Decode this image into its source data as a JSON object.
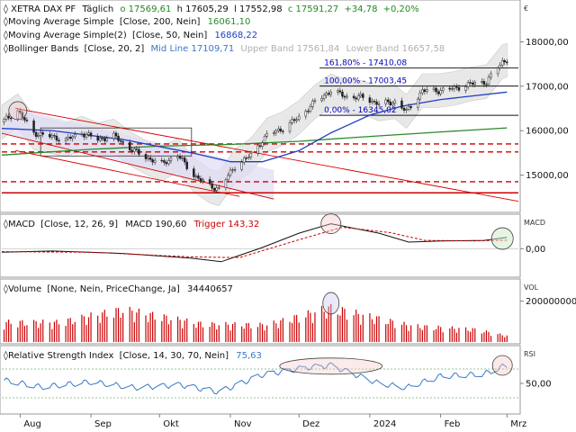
{
  "chart_data": {
    "type": "line",
    "headers": {
      "price": {
        "instrument": "XETRA DAX PF",
        "interval": "Täglich",
        "open": "o 17569,61",
        "high": "h 17605,29",
        "low": "l 17552,98",
        "close": "c 17591,27",
        "change": "+34,78",
        "change_pct": "+0,20%"
      },
      "sma200": {
        "label": "Moving Average Simple",
        "params": "[Close, 200, Nein]",
        "value": "16061,10"
      },
      "sma50": {
        "label": "Moving Average Simple(2)",
        "params": "[Close, 50, Nein]",
        "value": "16868,22"
      },
      "bb": {
        "label": "Bollinger Bands",
        "params": "[Close, 20, 2]",
        "mid": "Mid Line 17109,71",
        "upper": "Upper Band 17561,84",
        "lower": "Lower Band 16657,58"
      },
      "macd": {
        "label": "MACD",
        "params": "[Close, 12, 26, 9]",
        "value": "MACD 190,60",
        "trigger": "Trigger 143,32"
      },
      "volume": {
        "label": "Volume",
        "params": "[None, Nein, PriceChange, Ja]",
        "value": "34440657"
      },
      "rsi": {
        "label": "Relative Strength Index",
        "params": "[Close, 14, 30, 70, Nein]",
        "value": "75,63"
      }
    },
    "axis_titles": {
      "price": "€",
      "macd": "MACD",
      "volume": "VOL",
      "rsi": "RSI"
    },
    "price_axis": {
      "ylim": [
        14200,
        18900
      ],
      "ticks": [
        "18000,00",
        "17000,00",
        "16000,00",
        "15000,00"
      ],
      "tick_values": [
        18000,
        17000,
        16000,
        15000
      ]
    },
    "macd_axis": {
      "ylim": [
        -450,
        550
      ],
      "ticks": [
        "0,00"
      ],
      "tick_values": [
        0
      ]
    },
    "volume_axis": {
      "ylim": [
        0,
        300000000
      ],
      "ticks": [
        "200000000"
      ],
      "tick_values": [
        200000000
      ]
    },
    "rsi_axis": {
      "ylim": [
        10,
        100
      ],
      "ticks": [
        "50,00"
      ],
      "tick_values": [
        50
      ]
    },
    "x_axis": {
      "range": [
        "2023-07-24",
        "2024-03-06"
      ],
      "ticks": [
        {
          "date": "2023-08-01",
          "label": "Aug"
        },
        {
          "date": "2023-09-01",
          "label": "Sep"
        },
        {
          "date": "2023-10-01",
          "label": "Okt"
        },
        {
          "date": "2023-11-01",
          "label": "Nov"
        },
        {
          "date": "2023-12-01",
          "label": "Dez"
        },
        {
          "date": "2024-01-01",
          "label": "2024"
        },
        {
          "date": "2024-02-01",
          "label": "Feb"
        },
        {
          "date": "2024-03-01",
          "label": "Mrz"
        }
      ]
    },
    "price_series": [
      {
        "date": "2023-07-24",
        "value": 16190
      },
      {
        "date": "2023-07-31",
        "value": 16450
      },
      {
        "date": "2023-08-07",
        "value": 15950
      },
      {
        "date": "2023-08-14",
        "value": 15870
      },
      {
        "date": "2023-08-21",
        "value": 15790
      },
      {
        "date": "2023-08-28",
        "value": 15950
      },
      {
        "date": "2023-09-04",
        "value": 15800
      },
      {
        "date": "2023-09-11",
        "value": 15880
      },
      {
        "date": "2023-09-18",
        "value": 15600
      },
      {
        "date": "2023-09-25",
        "value": 15400
      },
      {
        "date": "2023-10-02",
        "value": 15250
      },
      {
        "date": "2023-10-09",
        "value": 15450
      },
      {
        "date": "2023-10-16",
        "value": 15000
      },
      {
        "date": "2023-10-23",
        "value": 14750
      },
      {
        "date": "2023-10-27",
        "value": 14690
      },
      {
        "date": "2023-11-03",
        "value": 15200
      },
      {
        "date": "2023-11-10",
        "value": 15450
      },
      {
        "date": "2023-11-17",
        "value": 15900
      },
      {
        "date": "2023-11-24",
        "value": 16050
      },
      {
        "date": "2023-12-01",
        "value": 16300
      },
      {
        "date": "2023-12-08",
        "value": 16650
      },
      {
        "date": "2023-12-15",
        "value": 16900
      },
      {
        "date": "2023-12-22",
        "value": 16760
      },
      {
        "date": "2023-12-29",
        "value": 16750
      },
      {
        "date": "2024-01-05",
        "value": 16600
      },
      {
        "date": "2024-01-12",
        "value": 16650
      },
      {
        "date": "2024-01-17",
        "value": 16430
      },
      {
        "date": "2024-01-24",
        "value": 16900
      },
      {
        "date": "2024-01-31",
        "value": 16900
      },
      {
        "date": "2024-02-07",
        "value": 16950
      },
      {
        "date": "2024-02-14",
        "value": 17050
      },
      {
        "date": "2024-02-21",
        "value": 17100
      },
      {
        "date": "2024-02-28",
        "value": 17550
      },
      {
        "date": "2024-03-01",
        "value": 17591
      }
    ],
    "sma200_series": [
      {
        "date": "2023-07-24",
        "value": 15450
      },
      {
        "date": "2023-09-01",
        "value": 15580
      },
      {
        "date": "2023-10-01",
        "value": 15650
      },
      {
        "date": "2023-11-01",
        "value": 15690
      },
      {
        "date": "2023-12-01",
        "value": 15760
      },
      {
        "date": "2024-01-01",
        "value": 15870
      },
      {
        "date": "2024-02-01",
        "value": 15970
      },
      {
        "date": "2024-03-01",
        "value": 16061
      }
    ],
    "sma50_series": [
      {
        "date": "2023-07-24",
        "value": 16050
      },
      {
        "date": "2023-08-15",
        "value": 16000
      },
      {
        "date": "2023-09-15",
        "value": 15800
      },
      {
        "date": "2023-10-15",
        "value": 15500
      },
      {
        "date": "2023-11-01",
        "value": 15300
      },
      {
        "date": "2023-11-15",
        "value": 15300
      },
      {
        "date": "2023-12-01",
        "value": 15550
      },
      {
        "date": "2023-12-15",
        "value": 15950
      },
      {
        "date": "2024-01-01",
        "value": 16350
      },
      {
        "date": "2024-01-15",
        "value": 16550
      },
      {
        "date": "2024-02-01",
        "value": 16700
      },
      {
        "date": "2024-03-01",
        "value": 16868
      }
    ],
    "fibonacci": [
      {
        "label": "161,80% - 17410,08",
        "value": 17410.08
      },
      {
        "label": "100,00% - 17003,45",
        "value": 17003.45
      },
      {
        "label": "0,00% - 16345,02",
        "value": 16345.02
      }
    ],
    "support_levels": [
      15700,
      15520,
      14850,
      14600
    ],
    "downtrend_channel": [
      {
        "from": {
          "date": "2023-07-30",
          "value": 16500
        },
        "to": {
          "date": "2024-03-06",
          "value": 14410
        }
      },
      {
        "from": {
          "date": "2023-07-24",
          "value": 15940
        },
        "to": {
          "date": "2023-11-20",
          "value": 14460
        }
      },
      {
        "from": {
          "date": "2023-07-30",
          "value": 15550
        },
        "to": {
          "date": "2023-11-05",
          "value": 14520
        }
      }
    ],
    "rectangle": {
      "from": {
        "date": "2023-08-10",
        "value": 16060
      },
      "to": {
        "date": "2023-10-15",
        "value": 15430
      }
    },
    "volume_bars": [
      {
        "date": "2023-08-18",
        "value": 110000000
      },
      {
        "date": "2023-09-15",
        "value": 180000000
      },
      {
        "date": "2023-10-20",
        "value": 100000000
      },
      {
        "date": "2023-11-17",
        "value": 95000000
      },
      {
        "date": "2023-12-15",
        "value": 190000000
      },
      {
        "date": "2024-01-19",
        "value": 90000000
      },
      {
        "date": "2024-02-16",
        "value": 70000000
      },
      {
        "date": "2024-03-01",
        "value": 34440657
      }
    ],
    "macd_series": [
      {
        "date": "2023-07-24",
        "value": -60
      },
      {
        "date": "2023-08-15",
        "value": -40
      },
      {
        "date": "2023-09-15",
        "value": -80
      },
      {
        "date": "2023-10-15",
        "value": -160
      },
      {
        "date": "2023-10-28",
        "value": -220
      },
      {
        "date": "2023-11-15",
        "value": 20
      },
      {
        "date": "2023-12-01",
        "value": 260
      },
      {
        "date": "2023-12-15",
        "value": 420
      },
      {
        "date": "2024-01-05",
        "value": 260
      },
      {
        "date": "2024-01-18",
        "value": 110
      },
      {
        "date": "2024-02-01",
        "value": 130
      },
      {
        "date": "2024-02-20",
        "value": 140
      },
      {
        "date": "2024-03-01",
        "value": 191
      }
    ],
    "macd_trigger_series": [
      {
        "date": "2023-07-24",
        "value": -50
      },
      {
        "date": "2023-09-01",
        "value": -60
      },
      {
        "date": "2023-10-15",
        "value": -140
      },
      {
        "date": "2023-11-05",
        "value": -150
      },
      {
        "date": "2023-12-01",
        "value": 150
      },
      {
        "date": "2023-12-20",
        "value": 360
      },
      {
        "date": "2024-01-10",
        "value": 270
      },
      {
        "date": "2024-01-25",
        "value": 140
      },
      {
        "date": "2024-02-15",
        "value": 130
      },
      {
        "date": "2024-03-01",
        "value": 143
      }
    ],
    "rsi_series": [
      {
        "date": "2023-07-24",
        "value": 55
      },
      {
        "date": "2023-08-10",
        "value": 45
      },
      {
        "date": "2023-09-01",
        "value": 52
      },
      {
        "date": "2023-09-20",
        "value": 44
      },
      {
        "date": "2023-10-10",
        "value": 48
      },
      {
        "date": "2023-10-27",
        "value": 38
      },
      {
        "date": "2023-11-15",
        "value": 62
      },
      {
        "date": "2023-12-05",
        "value": 72
      },
      {
        "date": "2023-12-15",
        "value": 75
      },
      {
        "date": "2024-01-05",
        "value": 50
      },
      {
        "date": "2024-01-17",
        "value": 44
      },
      {
        "date": "2024-02-01",
        "value": 60
      },
      {
        "date": "2024-02-20",
        "value": 63
      },
      {
        "date": "2024-03-01",
        "value": 75.63
      }
    ],
    "colors": {
      "price": "#1f3f8f",
      "sma200": "#2a8a2a",
      "sma50": "#1f3fbf",
      "bollinger_fill": "#e6e6e6",
      "fib": "#0000bb",
      "support": "#cc0000",
      "channel": "#d60000",
      "channel_fill": "#e0dcf5",
      "volume": "#cc0000",
      "macd": "#111111",
      "macd_trigger": "#cc0000",
      "rsi": "#3a78c8"
    }
  }
}
